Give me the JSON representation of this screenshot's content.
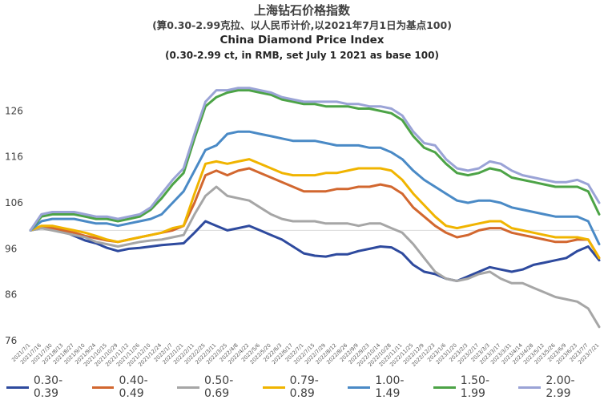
{
  "chart_data": {
    "type": "line",
    "title": "上海钻石价格指数",
    "subtitle": "(算0.30-2.99克拉、以人民币计价,以2021年7月1日为基点100)",
    "title_en": "China Diamond Price Index",
    "subtitle_en": "(0.30-2.99 ct, in RMB, set July 1 2021 as base 100)",
    "xlabel": "",
    "ylabel": "",
    "ylim": [
      76,
      132
    ],
    "yticks": [
      "76",
      "86",
      "96",
      "106",
      "116",
      "126"
    ],
    "reference_line": 100,
    "legend_position": "bottom",
    "x": [
      "2021/7/1",
      "2021/7/16",
      "2021/7/30",
      "2021/8/13",
      "2021/8/27",
      "2021/9/10",
      "2021/9/24",
      "2021/10/15",
      "2021/10/29",
      "2021/11/12",
      "2021/11/26",
      "2021/12/10",
      "2021/12/24",
      "2022/1/7",
      "2022/1/21",
      "2022/2/11",
      "2022/2/25",
      "2022/3/11",
      "2022/3/25",
      "2022/4/8",
      "2022/4/22",
      "2022/5/6",
      "2022/5/20",
      "2022/6/3",
      "2022/6/17",
      "2022/7/1",
      "2022/7/15",
      "2022/7/29",
      "2022/8/12",
      "2022/8/26",
      "2022/9/9",
      "2022/9/23",
      "2022/10/14",
      "2022/10/28",
      "2022/11/11",
      "2022/11/25",
      "2022/12/9",
      "2022/12/23",
      "2023/1/6",
      "2023/1/20",
      "2023/2/3",
      "2023/2/17",
      "2023/3/3",
      "2023/3/17",
      "2023/3/31",
      "2023/4/14",
      "2023/4/28",
      "2023/5/12",
      "2023/5/26",
      "2023/6/9",
      "2023/6/23",
      "2023/7/7",
      "2023/7/21"
    ],
    "series": [
      {
        "name": "0.30-0.39",
        "color": "#2e4a9e",
        "values": [
          100,
          100.5,
          100.2,
          99.8,
          98.8,
          97.8,
          97.2,
          96.2,
          95.5,
          96,
          96.2,
          96.5,
          96.8,
          97,
          97.2,
          99.5,
          102,
          101,
          100,
          100.5,
          101,
          100,
          99,
          98,
          96.5,
          95,
          94.5,
          94.3,
          94.8,
          94.8,
          95.5,
          96,
          96.5,
          96.3,
          95,
          92.5,
          91,
          90.5,
          89.5,
          89,
          90,
          91,
          92,
          91.5,
          91,
          91.5,
          92.5,
          93,
          93.5,
          94,
          95.5,
          96.5,
          93.5
        ]
      },
      {
        "name": "0.40-0.49",
        "color": "#d2672f",
        "values": [
          100,
          100.8,
          100.5,
          100,
          99.5,
          98.8,
          98.3,
          97.8,
          97.5,
          98,
          98.5,
          99,
          99.5,
          100,
          101,
          106,
          112,
          113,
          112,
          113,
          113.5,
          112.5,
          111.5,
          110.5,
          109.5,
          108.5,
          108.5,
          108.5,
          109,
          109,
          109.5,
          109.5,
          110,
          109.5,
          108,
          105,
          103,
          101,
          99.5,
          98.5,
          99,
          100,
          100.5,
          100.5,
          99.5,
          99,
          98.5,
          98,
          97.5,
          97.5,
          98,
          98,
          94
        ]
      },
      {
        "name": "0.50-0.69",
        "color": "#a6a6a6",
        "values": [
          100,
          100.5,
          100,
          99.5,
          99,
          98.5,
          97.5,
          97,
          96.5,
          97,
          97.5,
          97.8,
          98,
          98.5,
          99,
          103.5,
          107.5,
          109.5,
          107.5,
          107,
          106.5,
          105,
          103.5,
          102.5,
          102,
          102,
          102,
          101.5,
          101.5,
          101.5,
          101,
          101.5,
          101.5,
          100.5,
          99.5,
          97,
          94,
          91,
          89.5,
          89,
          89.5,
          90.5,
          91,
          89.5,
          88.5,
          88.5,
          87.5,
          86.5,
          85.5,
          85,
          84.5,
          83,
          79
        ]
      },
      {
        "name": "0.79-0.89",
        "color": "#f0b400",
        "values": [
          100,
          101,
          101,
          100.5,
          100,
          99.5,
          98.8,
          98,
          97.5,
          98,
          98.5,
          99,
          99.5,
          100.5,
          101,
          108,
          114.5,
          115,
          114.5,
          115,
          115.5,
          114.5,
          113.5,
          112.5,
          112,
          112,
          112,
          112.5,
          112.5,
          113,
          113.5,
          113.5,
          113.5,
          113,
          111,
          108,
          105.5,
          103,
          101,
          100.5,
          101,
          101.5,
          102,
          102,
          100.5,
          100,
          99.5,
          99,
          98.5,
          98.5,
          98.5,
          98,
          94
        ]
      },
      {
        "name": "1.00-1.49",
        "color": "#4a8ac6",
        "values": [
          100,
          102,
          102.5,
          102.5,
          102.5,
          102,
          101.5,
          101.5,
          101,
          101.5,
          102,
          102.5,
          103.5,
          106,
          108.5,
          113,
          117.5,
          118.5,
          121,
          121.5,
          121.5,
          121,
          120.5,
          120,
          119.5,
          119.5,
          119.5,
          119,
          118.5,
          118.5,
          118.5,
          118,
          118,
          117,
          115.5,
          113,
          111,
          109.5,
          108,
          106.5,
          106,
          106.5,
          106.5,
          106,
          105,
          104.5,
          104,
          103.5,
          103,
          103,
          103,
          102,
          97
        ]
      },
      {
        "name": "1.50-1.99",
        "color": "#4ca346",
        "values": [
          100,
          103,
          103.5,
          103.5,
          103.5,
          103,
          102.5,
          102.5,
          102,
          102.5,
          103,
          104.5,
          107,
          110,
          112.5,
          120,
          127,
          129,
          130,
          130.5,
          130.5,
          130,
          129.5,
          128.5,
          128,
          127.5,
          127.5,
          127,
          127,
          127,
          126.5,
          126.5,
          126,
          125.5,
          124,
          120.5,
          118,
          117,
          114.5,
          112.5,
          112,
          112.5,
          113.5,
          113,
          111.5,
          111,
          110.5,
          110,
          109.5,
          109.5,
          109.5,
          108.5,
          103.5
        ]
      },
      {
        "name": "2.00-2.99",
        "color": "#9aa3d6",
        "values": [
          100,
          103.5,
          104,
          104,
          104,
          103.5,
          103,
          103,
          102.5,
          103,
          103.5,
          105,
          108,
          111,
          113.5,
          121,
          128,
          130.5,
          130.5,
          131,
          131,
          130.5,
          130,
          129,
          128.5,
          128,
          128,
          128,
          128,
          127.5,
          127.5,
          127,
          127,
          126.5,
          125,
          121.5,
          119,
          118.5,
          115.5,
          113.5,
          113,
          113.5,
          115,
          114.5,
          113,
          112,
          111.5,
          111,
          110.5,
          110.5,
          111,
          110,
          106
        ]
      }
    ]
  }
}
